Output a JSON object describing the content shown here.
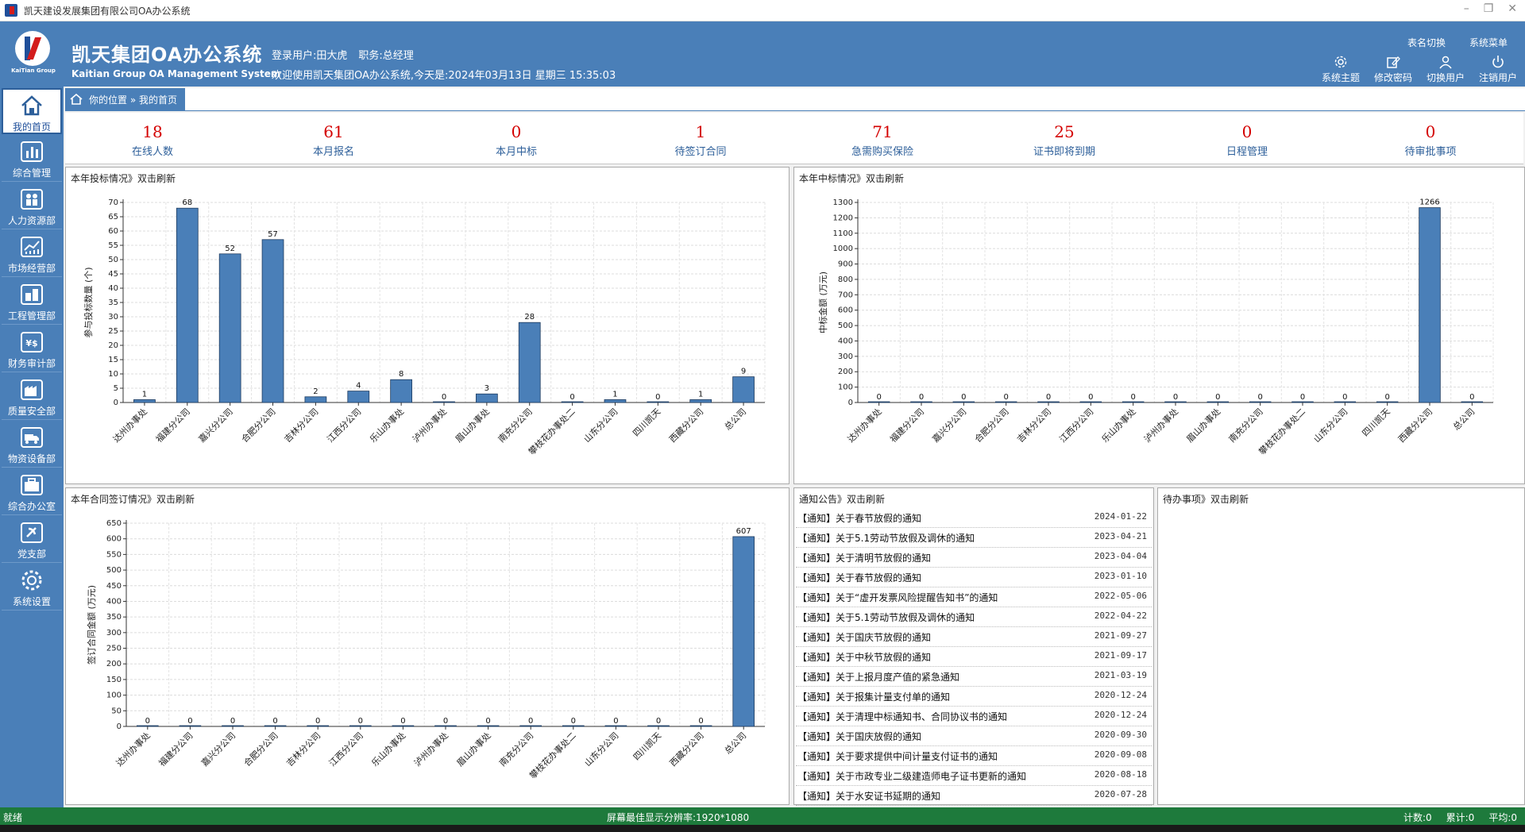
{
  "window": {
    "title": "凯天建设发展集团有限公司OA办公系统"
  },
  "header": {
    "logo_caption": "KaiTian Group",
    "brand_cn": "凯天集团OA办公系统",
    "brand_en": "Kaitian Group OA Management System",
    "login_user": "登录用户:田大虎",
    "position": "职务:总经理",
    "welcome": "欢迎使用凯天集团OA办公系统,今天是:2024年03月13日 星期三 15:35:03",
    "top_menu": [
      "表名切换",
      "系统菜单"
    ],
    "tools": [
      {
        "label": "系统主题",
        "icon": "gear-icon"
      },
      {
        "label": "修改密码",
        "icon": "edit-icon"
      },
      {
        "label": "切换用户",
        "icon": "user-icon"
      },
      {
        "label": "注销用户",
        "icon": "power-icon"
      }
    ]
  },
  "sidebar": {
    "items": [
      {
        "label": "我的首页",
        "icon": "home-icon"
      },
      {
        "label": "综合管理",
        "icon": "bar-chart-icon"
      },
      {
        "label": "人力资源部",
        "icon": "people-icon"
      },
      {
        "label": "市场经营部",
        "icon": "trend-chart-icon"
      },
      {
        "label": "工程管理部",
        "icon": "building-icon"
      },
      {
        "label": "财务审计部",
        "icon": "currency-icon"
      },
      {
        "label": "质量安全部",
        "icon": "factory-icon"
      },
      {
        "label": "物资设备部",
        "icon": "truck-icon"
      },
      {
        "label": "综合办公室",
        "icon": "briefcase-icon"
      },
      {
        "label": "党支部",
        "icon": "party-emblem-icon"
      },
      {
        "label": "系统设置",
        "icon": "gear-icon"
      }
    ]
  },
  "breadcrumb": {
    "text": "你的位置 » 我的首页"
  },
  "stats": [
    {
      "value": "18",
      "label": "在线人数"
    },
    {
      "value": "61",
      "label": "本月报名"
    },
    {
      "value": "0",
      "label": "本月中标"
    },
    {
      "value": "1",
      "label": "待签订合同"
    },
    {
      "value": "71",
      "label": "急需购买保险"
    },
    {
      "value": "25",
      "label": "证书即将到期"
    },
    {
      "value": "0",
      "label": "日程管理"
    },
    {
      "value": "0",
      "label": "待审批事项"
    }
  ],
  "panels": {
    "bid": {
      "title": "本年投标情况》双击刷新"
    },
    "win": {
      "title": "本年中标情况》双击刷新"
    },
    "contract": {
      "title": "本年合同签订情况》双击刷新"
    },
    "notice": {
      "title": "通知公告》双击刷新"
    },
    "todo": {
      "title": "待办事项》双击刷新"
    }
  },
  "chart_data": [
    {
      "type": "bar",
      "title": "本年投标情况》双击刷新",
      "ylabel": "参与投标数量 (个)",
      "xlabel": "",
      "categories": [
        "达州办事处",
        "福建分公司",
        "嘉兴分公司",
        "合肥分公司",
        "吉林分公司",
        "江西分公司",
        "乐山办事处",
        "泸州办事处",
        "眉山办事处",
        "南充分公司",
        "攀枝花办事处二",
        "山东分公司",
        "四川凯天",
        "西藏分公司",
        "总公司"
      ],
      "values": [
        1,
        68,
        52,
        57,
        2,
        4,
        8,
        0,
        3,
        28,
        0,
        1,
        0,
        1,
        9
      ],
      "ylim": [
        0,
        70
      ],
      "yticks": [
        0,
        5,
        10,
        15,
        20,
        25,
        30,
        35,
        40,
        45,
        50,
        55,
        60,
        65,
        70
      ],
      "grid": true,
      "color": "#4a7fb8"
    },
    {
      "type": "bar",
      "title": "本年中标情况》双击刷新",
      "ylabel": "中标金额 (万元)",
      "xlabel": "",
      "categories": [
        "达州办事处",
        "福建分公司",
        "嘉兴分公司",
        "合肥分公司",
        "吉林分公司",
        "江西分公司",
        "乐山办事处",
        "泸州办事处",
        "眉山办事处",
        "南充分公司",
        "攀枝花办事处二",
        "山东分公司",
        "四川凯天",
        "西藏分公司",
        "总公司"
      ],
      "values": [
        0,
        0,
        0,
        0,
        0,
        0,
        0,
        0,
        0,
        0,
        0,
        0,
        0,
        1266,
        0
      ],
      "ylim": [
        0,
        1300
      ],
      "yticks": [
        0,
        100,
        200,
        300,
        400,
        500,
        600,
        700,
        800,
        900,
        1000,
        1100,
        1200,
        1300
      ],
      "grid": true,
      "color": "#4a7fb8"
    },
    {
      "type": "bar",
      "title": "本年合同签订情况》双击刷新",
      "ylabel": "签订合同金额 (万元)",
      "xlabel": "",
      "categories": [
        "达州办事处",
        "福建分公司",
        "嘉兴分公司",
        "合肥分公司",
        "吉林分公司",
        "江西分公司",
        "乐山办事处",
        "泸州办事处",
        "眉山办事处",
        "南充分公司",
        "攀枝花办事处二",
        "山东分公司",
        "四川凯天",
        "西藏分公司",
        "总公司"
      ],
      "values": [
        0,
        0,
        0,
        0,
        0,
        0,
        0,
        0,
        0,
        0,
        0,
        0,
        0,
        0,
        607
      ],
      "ylim": [
        0,
        650
      ],
      "yticks": [
        0,
        50,
        100,
        150,
        200,
        250,
        300,
        350,
        400,
        450,
        500,
        550,
        600,
        650
      ],
      "grid": true,
      "color": "#4a7fb8"
    }
  ],
  "notices": [
    {
      "title": "【通知】关于春节放假的通知",
      "date": "2024-01-22"
    },
    {
      "title": "【通知】关于5.1劳动节放假及调休的通知",
      "date": "2023-04-21"
    },
    {
      "title": "【通知】关于清明节放假的通知",
      "date": "2023-04-04"
    },
    {
      "title": "【通知】关于春节放假的通知",
      "date": "2023-01-10"
    },
    {
      "title": "【通知】关于“虚开发票风险提醒告知书”的通知",
      "date": "2022-05-06"
    },
    {
      "title": "【通知】关于5.1劳动节放假及调休的通知",
      "date": "2022-04-22"
    },
    {
      "title": "【通知】关于国庆节放假的通知",
      "date": "2021-09-27"
    },
    {
      "title": "【通知】关于中秋节放假的通知",
      "date": "2021-09-17"
    },
    {
      "title": "【通知】关于上报月度产值的紧急通知",
      "date": "2021-03-19"
    },
    {
      "title": "【通知】关于报集计量支付单的通知",
      "date": "2020-12-24"
    },
    {
      "title": "【通知】关于清理中标通知书、合同协议书的通知",
      "date": "2020-12-24"
    },
    {
      "title": "【通知】关于国庆放假的通知",
      "date": "2020-09-30"
    },
    {
      "title": "【通知】关于要求提供中间计量支付证书的通知",
      "date": "2020-09-08"
    },
    {
      "title": "【通知】关于市政专业二级建造师电子证书更新的通知",
      "date": "2020-08-18"
    },
    {
      "title": "【通知】关于水安证书延期的通知",
      "date": "2020-07-28"
    }
  ],
  "statusbar": {
    "left": "就绪",
    "center": "屏幕最佳显示分辨率:1920*1080",
    "count": "计数:0",
    "sum": "累计:0",
    "avg": "平均:0"
  },
  "colors": {
    "header": "#4a7fb8",
    "accent_red": "#d40000",
    "status_green": "#1e7a3c",
    "bar": "#4a7fb8"
  }
}
